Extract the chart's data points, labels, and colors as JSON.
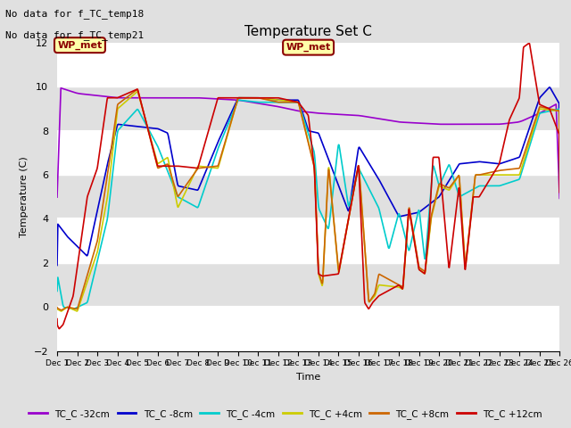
{
  "title": "Temperature Set C",
  "xlabel": "Time",
  "ylabel": "Temperature (C)",
  "no_data_text": [
    "No data for f_TC_temp18",
    "No data for f_TC_temp21"
  ],
  "wp_met_label": "WP_met",
  "ylim": [
    -2,
    12
  ],
  "yticks": [
    -2,
    0,
    2,
    4,
    6,
    8,
    10,
    12
  ],
  "background_color": "#e0e0e0",
  "plot_bg_color": "#e0e0e0",
  "grid_color": "#ffffff",
  "series_colors": {
    "TC_C -32cm": "#9900cc",
    "TC_C -8cm": "#0000cc",
    "TC_C -4cm": "#00cccc",
    "TC_C +4cm": "#cccc00",
    "TC_C +8cm": "#cc6600",
    "TC_C +12cm": "#cc0000"
  },
  "legend_labels": [
    "TC_C -32cm",
    "TC_C -8cm",
    "TC_C -4cm",
    "TC_C +4cm",
    "TC_C +8cm",
    "TC_C +12cm"
  ]
}
